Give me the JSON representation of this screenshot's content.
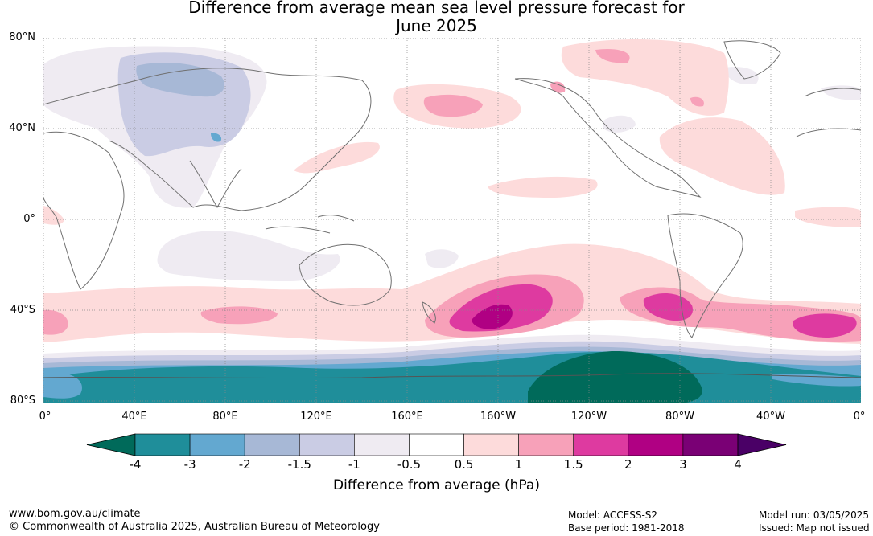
{
  "title": {
    "line1": "Difference from average mean sea level pressure forecast for",
    "line2": "June 2025"
  },
  "lat_labels": [
    "80°N",
    "40°N",
    "0°",
    "40°S",
    "80°S"
  ],
  "lon_labels": [
    "0°",
    "40°E",
    "80°E",
    "120°E",
    "160°E",
    "160°W",
    "120°W",
    "80°W",
    "40°W",
    "0°"
  ],
  "colorbar": {
    "ticks": [
      "-4",
      "-3",
      "-2",
      "-1.5",
      "-1",
      "-0.5",
      "0.5",
      "1",
      "1.5",
      "2",
      "3",
      "4"
    ],
    "colors": [
      "#006a5a",
      "#1f8e9a",
      "#63a8d0",
      "#a7b8d6",
      "#cacce4",
      "#efebf2",
      "#ffffff",
      "#fddbdb",
      "#f7a1b9",
      "#de3aa0",
      "#b00083",
      "#7a0075",
      "#4a0066"
    ],
    "label": "Difference from average (hPa)"
  },
  "footer": {
    "website": "www.bom.gov.au/climate",
    "copyright": "© Commonwealth of Australia 2025, Australian Bureau of Meteorology",
    "model": "Model: ACCESS-S2",
    "base_period": "Base period: 1981-2018",
    "model_run": "Model run: 03/05/2025",
    "issued": "Issued: Map not issued"
  }
}
